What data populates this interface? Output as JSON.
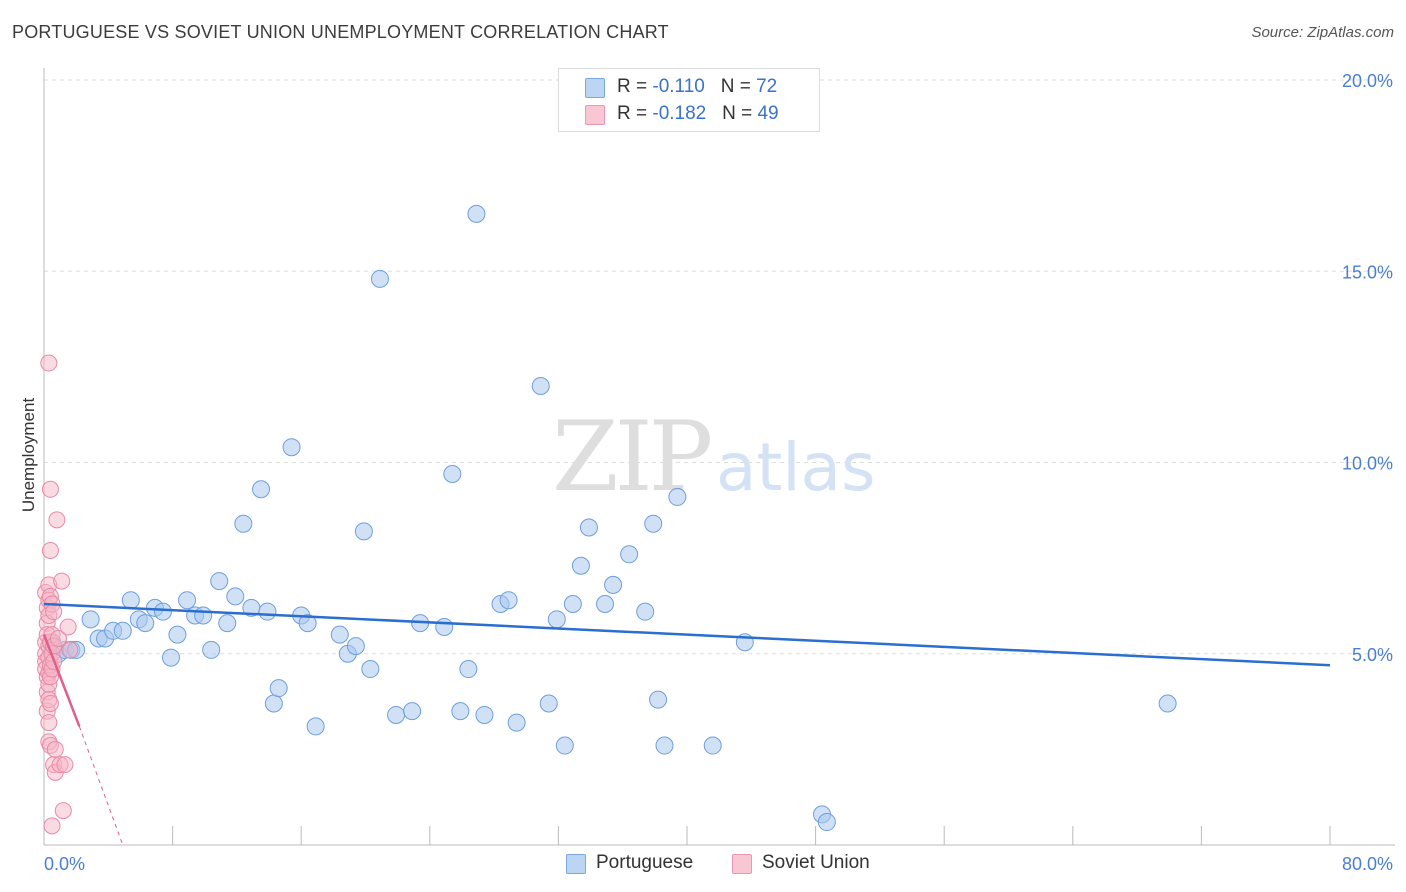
{
  "title": "PORTUGUESE VS SOVIET UNION UNEMPLOYMENT CORRELATION CHART",
  "source": "Source: ZipAtlas.com",
  "watermark": {
    "zip": "ZIP",
    "atlas": "atlas"
  },
  "legend": {
    "rows": [
      {
        "r_label": "R = ",
        "r_value": "-0.110",
        "n_label": "N = ",
        "n_value": "72"
      },
      {
        "r_label": "R = ",
        "r_value": "-0.182",
        "n_label": "N = ",
        "n_value": "49"
      }
    ]
  },
  "colors": {
    "blue_fill": "#a9c8ee",
    "blue_stroke": "#6e9fdc",
    "blue_line": "#2a6fcf",
    "pink_fill": "#f6b6c8",
    "pink_stroke": "#e88aa5",
    "pink_line": "#e0608a"
  },
  "chart_data": {
    "type": "scatter",
    "title": "PORTUGUESE VS SOVIET UNION UNEMPLOYMENT CORRELATION CHART",
    "xlabel": "",
    "ylabel": "Unemployment",
    "xlim": [
      0,
      80
    ],
    "ylim": [
      0,
      20
    ],
    "x_tick_labels": [
      "0.0%",
      "80.0%"
    ],
    "y_ticks": [
      5,
      10,
      15,
      20
    ],
    "y_tick_labels": [
      "5.0%",
      "10.0%",
      "15.0%",
      "20.0%"
    ],
    "grid": true,
    "series": [
      {
        "name": "Portuguese",
        "color": "#a9c8ee",
        "r": -0.11,
        "n": 72,
        "trend": {
          "x0": 0,
          "y0": 6.3,
          "x1": 80,
          "y1": 4.7
        },
        "points": [
          [
            0.5,
            5.3
          ],
          [
            0.9,
            5.0
          ],
          [
            1.3,
            5.1
          ],
          [
            1.7,
            5.1
          ],
          [
            2.0,
            5.1
          ],
          [
            2.9,
            5.9
          ],
          [
            3.4,
            5.4
          ],
          [
            3.8,
            5.4
          ],
          [
            4.3,
            5.6
          ],
          [
            4.9,
            5.6
          ],
          [
            5.4,
            6.4
          ],
          [
            5.9,
            5.9
          ],
          [
            6.3,
            5.8
          ],
          [
            6.9,
            6.2
          ],
          [
            7.4,
            6.1
          ],
          [
            7.9,
            4.9
          ],
          [
            8.3,
            5.5
          ],
          [
            8.9,
            6.4
          ],
          [
            9.4,
            6.0
          ],
          [
            9.9,
            6.0
          ],
          [
            10.4,
            5.1
          ],
          [
            10.9,
            6.9
          ],
          [
            11.4,
            5.8
          ],
          [
            11.9,
            6.5
          ],
          [
            12.4,
            8.4
          ],
          [
            12.9,
            6.2
          ],
          [
            13.5,
            9.3
          ],
          [
            13.9,
            6.1
          ],
          [
            14.3,
            3.7
          ],
          [
            14.6,
            4.1
          ],
          [
            15.4,
            10.4
          ],
          [
            16.0,
            6.0
          ],
          [
            16.4,
            5.8
          ],
          [
            16.9,
            3.1
          ],
          [
            18.4,
            5.5
          ],
          [
            18.9,
            5.0
          ],
          [
            19.4,
            5.2
          ],
          [
            19.9,
            8.2
          ],
          [
            20.3,
            4.6
          ],
          [
            20.9,
            14.8
          ],
          [
            21.9,
            3.4
          ],
          [
            22.9,
            3.5
          ],
          [
            23.4,
            5.8
          ],
          [
            24.9,
            5.7
          ],
          [
            25.4,
            9.7
          ],
          [
            25.9,
            3.5
          ],
          [
            26.4,
            4.6
          ],
          [
            26.9,
            16.5
          ],
          [
            27.4,
            3.4
          ],
          [
            28.4,
            6.3
          ],
          [
            28.9,
            6.4
          ],
          [
            29.4,
            3.2
          ],
          [
            30.9,
            12.0
          ],
          [
            31.4,
            3.7
          ],
          [
            31.9,
            5.9
          ],
          [
            32.4,
            2.6
          ],
          [
            32.9,
            6.3
          ],
          [
            33.4,
            7.3
          ],
          [
            33.9,
            8.3
          ],
          [
            34.9,
            6.3
          ],
          [
            35.4,
            6.8
          ],
          [
            36.4,
            7.6
          ],
          [
            37.4,
            6.1
          ],
          [
            37.9,
            8.4
          ],
          [
            38.2,
            3.8
          ],
          [
            38.6,
            2.6
          ],
          [
            39.4,
            9.1
          ],
          [
            41.6,
            2.6
          ],
          [
            43.6,
            5.3
          ],
          [
            69.9,
            3.7
          ],
          [
            48.4,
            0.8
          ],
          [
            48.7,
            0.6
          ]
        ]
      },
      {
        "name": "Soviet Union",
        "color": "#f6b6c8",
        "r": -0.182,
        "n": 49,
        "trend": {
          "x0": 0,
          "y0": 5.5,
          "x1": 2.2,
          "y1": 3.1,
          "dash_to_x": 4.9,
          "dash_to_y": 0.0
        },
        "points": [
          [
            0.1,
            5.3
          ],
          [
            0.1,
            5.0
          ],
          [
            0.1,
            4.8
          ],
          [
            0.1,
            4.6
          ],
          [
            0.1,
            6.6
          ],
          [
            0.2,
            6.2
          ],
          [
            0.2,
            5.8
          ],
          [
            0.2,
            5.5
          ],
          [
            0.2,
            4.4
          ],
          [
            0.2,
            4.0
          ],
          [
            0.2,
            3.5
          ],
          [
            0.3,
            6.8
          ],
          [
            0.3,
            6.4
          ],
          [
            0.3,
            6.0
          ],
          [
            0.3,
            5.2
          ],
          [
            0.3,
            4.9
          ],
          [
            0.3,
            4.5
          ],
          [
            0.3,
            4.2
          ],
          [
            0.3,
            3.8
          ],
          [
            0.3,
            3.2
          ],
          [
            0.3,
            2.7
          ],
          [
            0.3,
            12.6
          ],
          [
            0.4,
            9.3
          ],
          [
            0.4,
            7.7
          ],
          [
            0.4,
            6.5
          ],
          [
            0.4,
            5.3
          ],
          [
            0.4,
            4.7
          ],
          [
            0.4,
            4.4
          ],
          [
            0.4,
            3.7
          ],
          [
            0.4,
            2.6
          ],
          [
            0.5,
            6.3
          ],
          [
            0.5,
            5.5
          ],
          [
            0.5,
            5.0
          ],
          [
            0.5,
            4.6
          ],
          [
            0.5,
            0.5
          ],
          [
            0.6,
            6.1
          ],
          [
            0.6,
            5.2
          ],
          [
            0.6,
            4.8
          ],
          [
            0.6,
            2.1
          ],
          [
            0.7,
            2.5
          ],
          [
            0.7,
            1.9
          ],
          [
            0.8,
            8.5
          ],
          [
            0.9,
            5.4
          ],
          [
            1.0,
            2.1
          ],
          [
            1.1,
            6.9
          ],
          [
            1.2,
            0.9
          ],
          [
            1.3,
            2.1
          ],
          [
            1.5,
            5.7
          ],
          [
            1.6,
            5.1
          ]
        ]
      }
    ]
  },
  "bottom_legend": [
    "Portuguese",
    "Soviet Union"
  ]
}
